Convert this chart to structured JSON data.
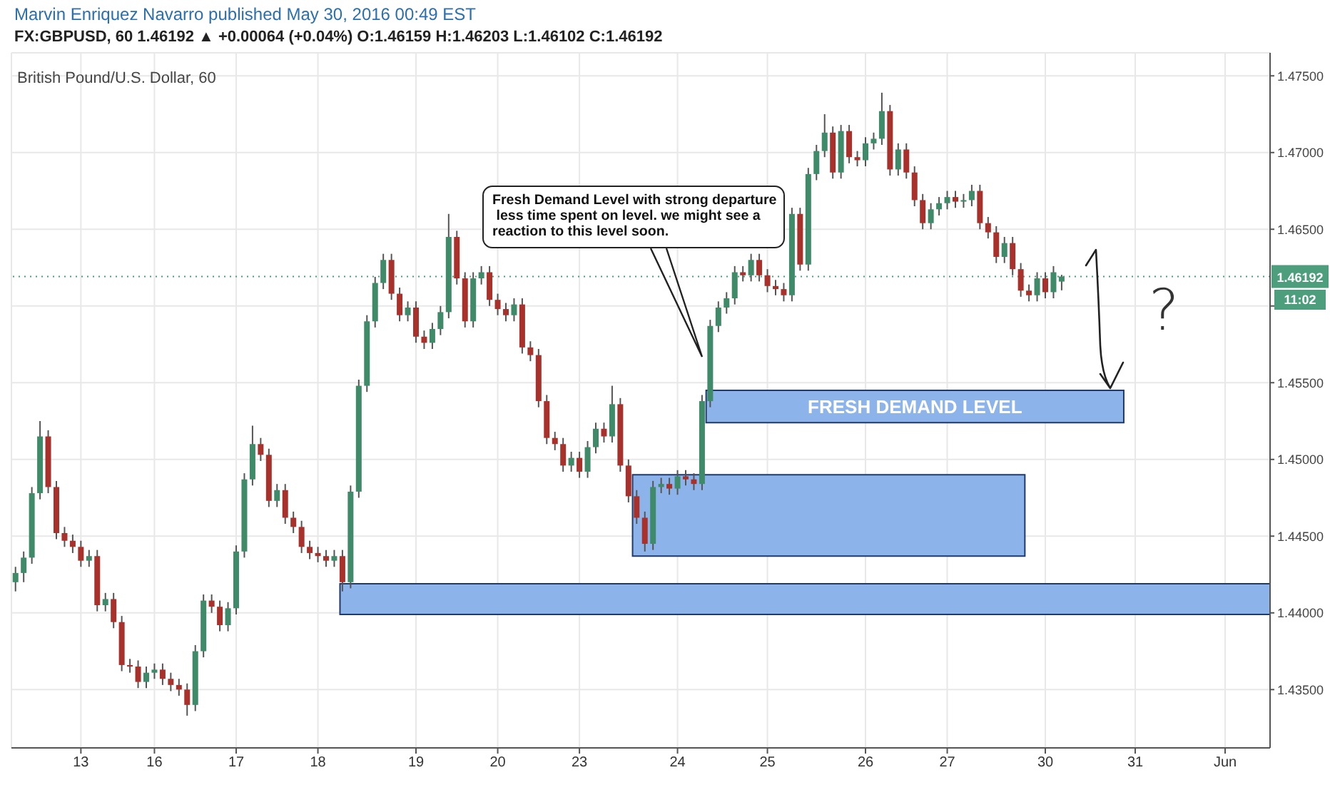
{
  "chart_data": {
    "type": "candlestick",
    "title": "Marvin Enriquez Navarro published May 30, 2016 00:49 EST",
    "subtitle": "FX:GBPUSD, 60 1.46192 ▲ +0.00064 (+0.04%) O:1.46159 H:1.46203 L:1.46102 C:1.46192",
    "categories": [
      null,
      null,
      null,
      null,
      null,
      null,
      null,
      null,
      "13",
      null,
      null,
      null,
      null,
      null,
      null,
      null,
      null,
      "16",
      null,
      null,
      null,
      null,
      null,
      null,
      null,
      null,
      null,
      "17",
      null,
      null,
      null,
      null,
      null,
      null,
      null,
      null,
      null,
      "18",
      null,
      null,
      null,
      null,
      null,
      null,
      null,
      null,
      null,
      null,
      null,
      "19",
      null,
      null,
      null,
      null,
      null,
      null,
      null,
      null,
      null,
      "20",
      null,
      null,
      null,
      null,
      null,
      null,
      null,
      null,
      null,
      "23",
      null,
      null,
      null,
      null,
      null,
      null,
      null,
      null,
      null,
      null,
      null,
      "24",
      null,
      null,
      null,
      null,
      null,
      null,
      null,
      null,
      null,
      null,
      "25",
      null,
      null,
      null,
      null,
      null,
      null,
      null,
      null,
      null,
      null,
      null,
      "26",
      null,
      null,
      null,
      null,
      null,
      null,
      null,
      null,
      null,
      "27",
      null,
      null,
      null,
      null,
      null,
      null,
      null,
      null,
      null,
      null,
      null,
      "30",
      null,
      null,
      null,
      null,
      null,
      null,
      null,
      null,
      null,
      null,
      "31",
      null,
      null,
      null,
      null,
      null,
      null,
      null,
      null,
      null,
      null,
      "Jun",
      null,
      null,
      null,
      null,
      null
    ],
    "ohlc": [
      [
        1.442,
        1.443,
        1.4414,
        1.4426
      ],
      [
        1.4426,
        1.444,
        1.442,
        1.4436
      ],
      [
        1.4436,
        1.4482,
        1.4432,
        1.4478
      ],
      [
        1.4478,
        1.4525,
        1.4474,
        1.4515
      ],
      [
        1.4515,
        1.4519,
        1.4478,
        1.4482
      ],
      [
        1.4482,
        1.4486,
        1.4448,
        1.4452
      ],
      [
        1.4452,
        1.4456,
        1.4443,
        1.4447
      ],
      [
        1.4447,
        1.4451,
        1.4439,
        1.4443
      ],
      [
        1.4443,
        1.4447,
        1.443,
        1.4434
      ],
      [
        1.4434,
        1.4441,
        1.443,
        1.4437
      ],
      [
        1.4437,
        1.4441,
        1.4401,
        1.4405
      ],
      [
        1.4405,
        1.4413,
        1.4401,
        1.4409
      ],
      [
        1.4409,
        1.4413,
        1.439,
        1.4394
      ],
      [
        1.4394,
        1.4398,
        1.4362,
        1.4366
      ],
      [
        1.4366,
        1.437,
        1.4361,
        1.4365
      ],
      [
        1.4365,
        1.4369,
        1.4351,
        1.4355
      ],
      [
        1.4355,
        1.4365,
        1.4351,
        1.4361
      ],
      [
        1.4361,
        1.4367,
        1.4357,
        1.4363
      ],
      [
        1.4363,
        1.4367,
        1.4353,
        1.4357
      ],
      [
        1.4357,
        1.4361,
        1.4349,
        1.4353
      ],
      [
        1.4353,
        1.4357,
        1.4346,
        1.435
      ],
      [
        1.435,
        1.4354,
        1.4333,
        1.434
      ],
      [
        1.434,
        1.4379,
        1.4336,
        1.4375
      ],
      [
        1.4375,
        1.4412,
        1.4371,
        1.4408
      ],
      [
        1.4408,
        1.4412,
        1.44,
        1.4404
      ],
      [
        1.4404,
        1.4408,
        1.4388,
        1.4392
      ],
      [
        1.4392,
        1.4407,
        1.4388,
        1.4403
      ],
      [
        1.4403,
        1.4444,
        1.4399,
        1.444
      ],
      [
        1.444,
        1.4491,
        1.4436,
        1.4487
      ],
      [
        1.4487,
        1.4522,
        1.4483,
        1.451
      ],
      [
        1.451,
        1.4514,
        1.4499,
        1.4503
      ],
      [
        1.4503,
        1.4507,
        1.4469,
        1.4473
      ],
      [
        1.4473,
        1.4484,
        1.4469,
        1.448
      ],
      [
        1.448,
        1.4484,
        1.4458,
        1.4462
      ],
      [
        1.4462,
        1.4466,
        1.4452,
        1.4456
      ],
      [
        1.4456,
        1.446,
        1.4439,
        1.4443
      ],
      [
        1.4443,
        1.4447,
        1.4435,
        1.4439
      ],
      [
        1.4439,
        1.4443,
        1.4433,
        1.4437
      ],
      [
        1.4437,
        1.4441,
        1.443,
        1.4434
      ],
      [
        1.4434,
        1.4441,
        1.443,
        1.4437
      ],
      [
        1.4437,
        1.4441,
        1.4414,
        1.442
      ],
      [
        1.442,
        1.4483,
        1.4416,
        1.4479
      ],
      [
        1.4479,
        1.4552,
        1.4475,
        1.4548
      ],
      [
        1.4548,
        1.4594,
        1.4544,
        1.459
      ],
      [
        1.459,
        1.4619,
        1.4586,
        1.4615
      ],
      [
        1.4615,
        1.4634,
        1.4611,
        1.463
      ],
      [
        1.463,
        1.4634,
        1.4604,
        1.4608
      ],
      [
        1.4608,
        1.4612,
        1.459,
        1.4594
      ],
      [
        1.4594,
        1.4603,
        1.459,
        1.4599
      ],
      [
        1.4599,
        1.4603,
        1.4576,
        1.458
      ],
      [
        1.458,
        1.4584,
        1.4572,
        1.4576
      ],
      [
        1.4576,
        1.4589,
        1.4572,
        1.4585
      ],
      [
        1.4585,
        1.46,
        1.4581,
        1.4596
      ],
      [
        1.4596,
        1.466,
        1.4592,
        1.4645
      ],
      [
        1.4645,
        1.4649,
        1.4614,
        1.4618
      ],
      [
        1.4618,
        1.4622,
        1.4586,
        1.459
      ],
      [
        1.459,
        1.4622,
        1.4586,
        1.4618
      ],
      [
        1.4618,
        1.4626,
        1.4614,
        1.4622
      ],
      [
        1.4622,
        1.4626,
        1.46,
        1.4604
      ],
      [
        1.4604,
        1.4608,
        1.4594,
        1.4598
      ],
      [
        1.4598,
        1.4602,
        1.459,
        1.4594
      ],
      [
        1.4594,
        1.4605,
        1.459,
        1.4601
      ],
      [
        1.4601,
        1.4605,
        1.4569,
        1.4573
      ],
      [
        1.4573,
        1.4577,
        1.4564,
        1.4568
      ],
      [
        1.4568,
        1.4572,
        1.4534,
        1.4538
      ],
      [
        1.4538,
        1.4542,
        1.451,
        1.4514
      ],
      [
        1.4514,
        1.4518,
        1.4506,
        1.451
      ],
      [
        1.451,
        1.4514,
        1.4492,
        1.4496
      ],
      [
        1.4496,
        1.4505,
        1.4492,
        1.4501
      ],
      [
        1.4501,
        1.4505,
        1.4488,
        1.4492
      ],
      [
        1.4492,
        1.4512,
        1.4488,
        1.4508
      ],
      [
        1.4508,
        1.4524,
        1.4504,
        1.452
      ],
      [
        1.452,
        1.4524,
        1.4511,
        1.4515
      ],
      [
        1.4515,
        1.4548,
        1.4511,
        1.4536
      ],
      [
        1.4536,
        1.454,
        1.4492,
        1.4496
      ],
      [
        1.4496,
        1.45,
        1.4472,
        1.4476
      ],
      [
        1.4476,
        1.448,
        1.4458,
        1.4462
      ],
      [
        1.4462,
        1.4466,
        1.444,
        1.4445
      ],
      [
        1.4445,
        1.4486,
        1.4441,
        1.4482
      ],
      [
        1.4482,
        1.4488,
        1.4478,
        1.4484
      ],
      [
        1.4484,
        1.4488,
        1.4477,
        1.4481
      ],
      [
        1.4481,
        1.4493,
        1.4477,
        1.4489
      ],
      [
        1.4489,
        1.4493,
        1.4483,
        1.4487
      ],
      [
        1.4487,
        1.4491,
        1.448,
        1.4484
      ],
      [
        1.4484,
        1.4542,
        1.448,
        1.4538
      ],
      [
        1.4538,
        1.4591,
        1.4534,
        1.4587
      ],
      [
        1.4587,
        1.4603,
        1.4583,
        1.4599
      ],
      [
        1.4599,
        1.4609,
        1.4595,
        1.4605
      ],
      [
        1.4605,
        1.4626,
        1.4601,
        1.4622
      ],
      [
        1.4622,
        1.4626,
        1.4616,
        1.462
      ],
      [
        1.462,
        1.4634,
        1.4616,
        1.463
      ],
      [
        1.463,
        1.4634,
        1.4616,
        1.462
      ],
      [
        1.462,
        1.4624,
        1.4609,
        1.4613
      ],
      [
        1.4613,
        1.4617,
        1.4607,
        1.4611
      ],
      [
        1.4611,
        1.4615,
        1.4603,
        1.4607
      ],
      [
        1.4607,
        1.4664,
        1.4603,
        1.466
      ],
      [
        1.466,
        1.4664,
        1.4623,
        1.4627
      ],
      [
        1.4627,
        1.469,
        1.4623,
        1.4686
      ],
      [
        1.4686,
        1.4705,
        1.4682,
        1.4701
      ],
      [
        1.4701,
        1.4725,
        1.4697,
        1.4713
      ],
      [
        1.4713,
        1.4717,
        1.4683,
        1.4687
      ],
      [
        1.4687,
        1.4718,
        1.4683,
        1.4714
      ],
      [
        1.4714,
        1.4718,
        1.4693,
        1.4697
      ],
      [
        1.4697,
        1.4701,
        1.4691,
        1.4695
      ],
      [
        1.4695,
        1.471,
        1.4691,
        1.4706
      ],
      [
        1.4706,
        1.4713,
        1.4702,
        1.4709
      ],
      [
        1.4709,
        1.4739,
        1.4705,
        1.4727
      ],
      [
        1.4727,
        1.4731,
        1.4685,
        1.4689
      ],
      [
        1.4689,
        1.4706,
        1.4685,
        1.4702
      ],
      [
        1.4702,
        1.4706,
        1.4683,
        1.4687
      ],
      [
        1.4687,
        1.4691,
        1.4665,
        1.4669
      ],
      [
        1.4669,
        1.4673,
        1.465,
        1.4654
      ],
      [
        1.4654,
        1.4667,
        1.465,
        1.4663
      ],
      [
        1.4663,
        1.4671,
        1.4659,
        1.4667
      ],
      [
        1.4667,
        1.4675,
        1.4663,
        1.4671
      ],
      [
        1.4671,
        1.4675,
        1.4664,
        1.4668
      ],
      [
        1.4668,
        1.4673,
        1.4664,
        1.4669
      ],
      [
        1.4669,
        1.4679,
        1.4665,
        1.4675
      ],
      [
        1.4675,
        1.4679,
        1.465,
        1.4654
      ],
      [
        1.4654,
        1.4658,
        1.4644,
        1.4648
      ],
      [
        1.4648,
        1.4652,
        1.4628,
        1.4632
      ],
      [
        1.4632,
        1.4645,
        1.4628,
        1.4641
      ],
      [
        1.4641,
        1.4645,
        1.462,
        1.4624
      ],
      [
        1.4624,
        1.4628,
        1.4606,
        1.461
      ],
      [
        1.461,
        1.4614,
        1.4603,
        1.4607
      ],
      [
        1.4607,
        1.4622,
        1.4603,
        1.4618
      ],
      [
        1.4618,
        1.4622,
        1.4605,
        1.4609
      ],
      [
        1.4609,
        1.4626,
        1.4605,
        1.4622
      ],
      [
        1.46159,
        1.46203,
        1.46102,
        1.46192
      ],
      null,
      null,
      null,
      null,
      null,
      null,
      null,
      null,
      null,
      null,
      null,
      null,
      null,
      null,
      null,
      null,
      null,
      null,
      null,
      null,
      null,
      null,
      null,
      null,
      null
    ],
    "ylim": [
      1.4312,
      1.4765
    ],
    "yticks": [
      {
        "value": 1.435,
        "label": "1.43500"
      },
      {
        "value": 1.44,
        "label": "1.44000"
      },
      {
        "value": 1.445,
        "label": "1.44500"
      },
      {
        "value": 1.45,
        "label": "1.45000"
      },
      {
        "value": 1.455,
        "label": "1.45500"
      },
      {
        "value": 1.46,
        "label": null
      },
      {
        "value": 1.465,
        "label": "1.46500"
      },
      {
        "value": 1.47,
        "label": "1.47000"
      },
      {
        "value": 1.475,
        "label": "1.47500"
      }
    ],
    "grid": true,
    "bands": [
      {
        "axis": "y",
        "from": 1.4399,
        "to": 1.4419,
        "color": "#8db4ea"
      },
      {
        "axis": "y",
        "from": 1.4437,
        "to": 1.449,
        "color": "#8db4ea"
      },
      {
        "axis": "y",
        "from": 1.4524,
        "to": 1.4545,
        "label": "FRESH DEMAND LEVEL",
        "color": "#8db4ea"
      }
    ],
    "ref_lines": [
      {
        "axis": "y",
        "value": 1.46192,
        "label": "1.46192",
        "color": "#4d9e7c",
        "line_style": "dotted"
      }
    ],
    "annotations": [
      "British Pound/U.S. Dollar, 60",
      "Fresh Demand Level with strong departure\n less time spent on level. we might see a\nreaction to this level soon.",
      "11:02",
      "?"
    ]
  }
}
